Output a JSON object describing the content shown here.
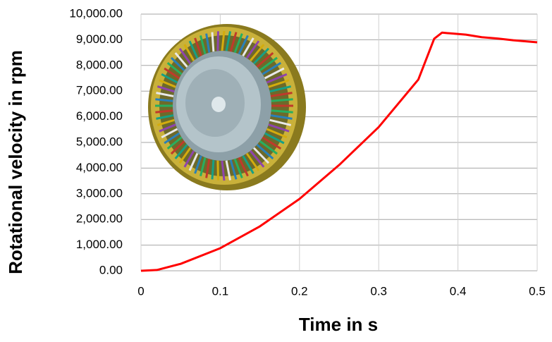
{
  "chart_data": {
    "type": "line",
    "x_label": "Time in s",
    "y_label": "Rotational velocity in rpm",
    "x": [
      0,
      0.02,
      0.05,
      0.1,
      0.15,
      0.2,
      0.25,
      0.3,
      0.35,
      0.37,
      0.38,
      0.39,
      0.41,
      0.43,
      0.45,
      0.47,
      0.5
    ],
    "series": [
      {
        "color": "#ff0000",
        "values": [
          0,
          30,
          270,
          880,
          1730,
          2800,
          4120,
          5600,
          7450,
          9040,
          9280,
          9250,
          9200,
          9100,
          9050,
          8980,
          8900
        ]
      }
    ],
    "xlim": [
      0,
      0.5
    ],
    "xticks": [
      0,
      0.1,
      0.2,
      0.3,
      0.4,
      0.5
    ],
    "ylim": [
      0,
      10000
    ],
    "yticks": [
      {
        "value": 0,
        "label": "0.00"
      },
      {
        "value": 1000,
        "label": "1,000.00"
      },
      {
        "value": 2000,
        "label": "2,000.00"
      },
      {
        "value": 3000,
        "label": "3,000.00"
      },
      {
        "value": 4000,
        "label": "4,000.00"
      },
      {
        "value": 5000,
        "label": "5,000.00"
      },
      {
        "value": 6000,
        "label": "6,000.00"
      },
      {
        "value": 7000,
        "label": "7,000.00"
      },
      {
        "value": 8000,
        "label": "8,000.00"
      },
      {
        "value": 9000,
        "label": "9,000.00"
      },
      {
        "value": 10000,
        "label": "10,000.00"
      }
    ],
    "grid": true
  }
}
